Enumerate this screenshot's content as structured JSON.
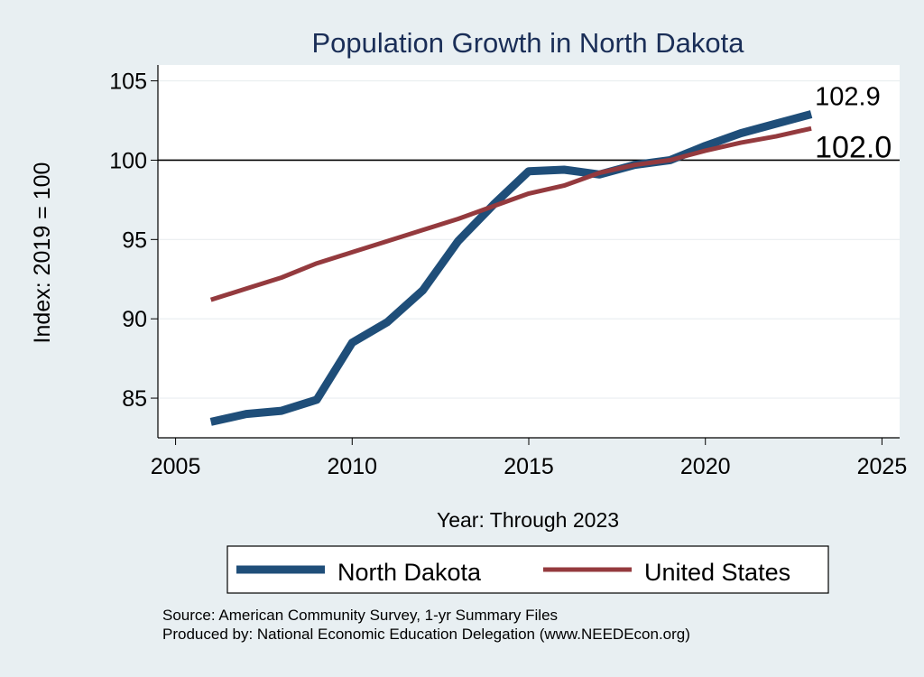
{
  "chart_data": {
    "type": "line",
    "title": "Population Growth in North Dakota",
    "xlabel": "Year: Through 2023",
    "ylabel": "Index: 2019 = 100",
    "xlim": [
      2004.5,
      2025.5
    ],
    "ylim": [
      82.5,
      106
    ],
    "x_ticks": [
      2005,
      2010,
      2015,
      2020,
      2025
    ],
    "y_ticks": [
      85,
      90,
      95,
      100,
      105
    ],
    "reference_line": 100,
    "grid": true,
    "legend_position": "bottom",
    "x": [
      2006,
      2007,
      2008,
      2009,
      2010,
      2011,
      2012,
      2013,
      2014,
      2015,
      2016,
      2017,
      2018,
      2019,
      2020,
      2021,
      2022,
      2023
    ],
    "series": [
      {
        "name": "North Dakota",
        "color": "#1f4e79",
        "values": [
          83.5,
          84.0,
          84.2,
          84.9,
          88.5,
          89.8,
          91.8,
          94.9,
          97.2,
          99.3,
          99.4,
          99.1,
          99.7,
          100.0,
          100.9,
          101.7,
          102.3,
          102.9
        ],
        "end_label": "102.9"
      },
      {
        "name": "United States",
        "color": "#943a3e",
        "values": [
          91.2,
          91.9,
          92.6,
          93.5,
          94.2,
          94.9,
          95.6,
          96.3,
          97.1,
          97.9,
          98.4,
          99.2,
          99.7,
          100.0,
          100.6,
          101.1,
          101.5,
          102.0
        ],
        "end_label": "102.0"
      }
    ]
  },
  "footer": {
    "source": "Source: American Community Survey, 1-yr Summary Files",
    "produced_by": "Produced by: National Economic Education Delegation (www.NEEDEcon.org)"
  }
}
